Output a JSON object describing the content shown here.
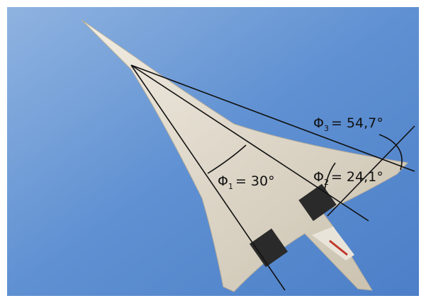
{
  "annotations": [
    {
      "symbol": "Φ",
      "subscript": "1",
      "text": "= 30°"
    },
    {
      "symbol": "Φ",
      "subscript": "2",
      "text": "= 24,1°"
    },
    {
      "symbol": "Φ",
      "subscript": "3",
      "text": "= 54,7°"
    }
  ]
}
